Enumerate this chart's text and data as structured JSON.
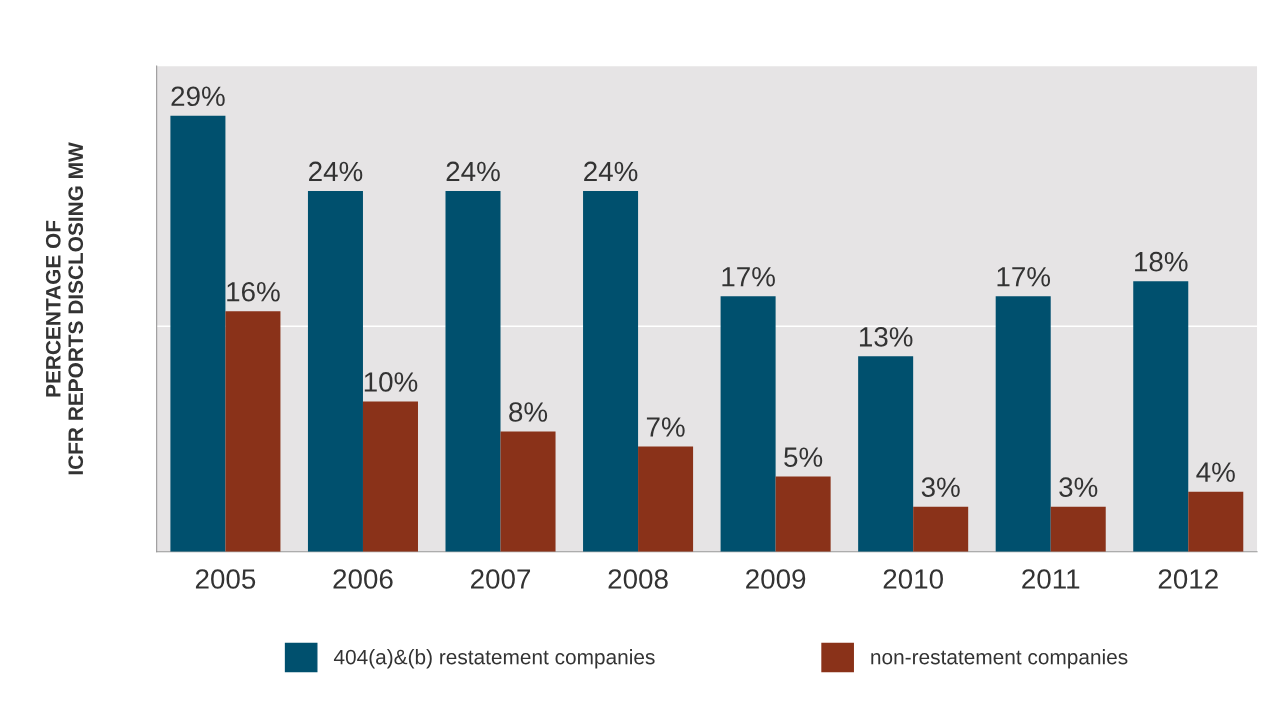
{
  "chart_data": {
    "type": "bar",
    "ylabel": "PERCENTAGE OF\nICFR REPORTS DISCLOSING MW",
    "categories": [
      "2005",
      "2006",
      "2007",
      "2008",
      "2009",
      "2010",
      "2011",
      "2012"
    ],
    "series": [
      {
        "name": "404(a)&(b) restatement companies",
        "color": "#00506e",
        "values": [
          29,
          24,
          24,
          24,
          17,
          13,
          17,
          18
        ],
        "value_labels": [
          "29%",
          "24%",
          "24%",
          "24%",
          "17%",
          "13%",
          "17%",
          "18%"
        ]
      },
      {
        "name": "non-restatement companies",
        "color": "#8a3219",
        "values": [
          16,
          10,
          8,
          7,
          5,
          3,
          3,
          4
        ],
        "value_labels": [
          "16%",
          "10%",
          "8%",
          "7%",
          "5%",
          "3%",
          "3%",
          "4%"
        ]
      }
    ],
    "ylim": [
      0,
      32.3
    ],
    "ref_lines": [
      {
        "axis": "y",
        "value": 15,
        "color": "#ffffff"
      }
    ],
    "legend": "bottom",
    "tick_labels": "x"
  }
}
